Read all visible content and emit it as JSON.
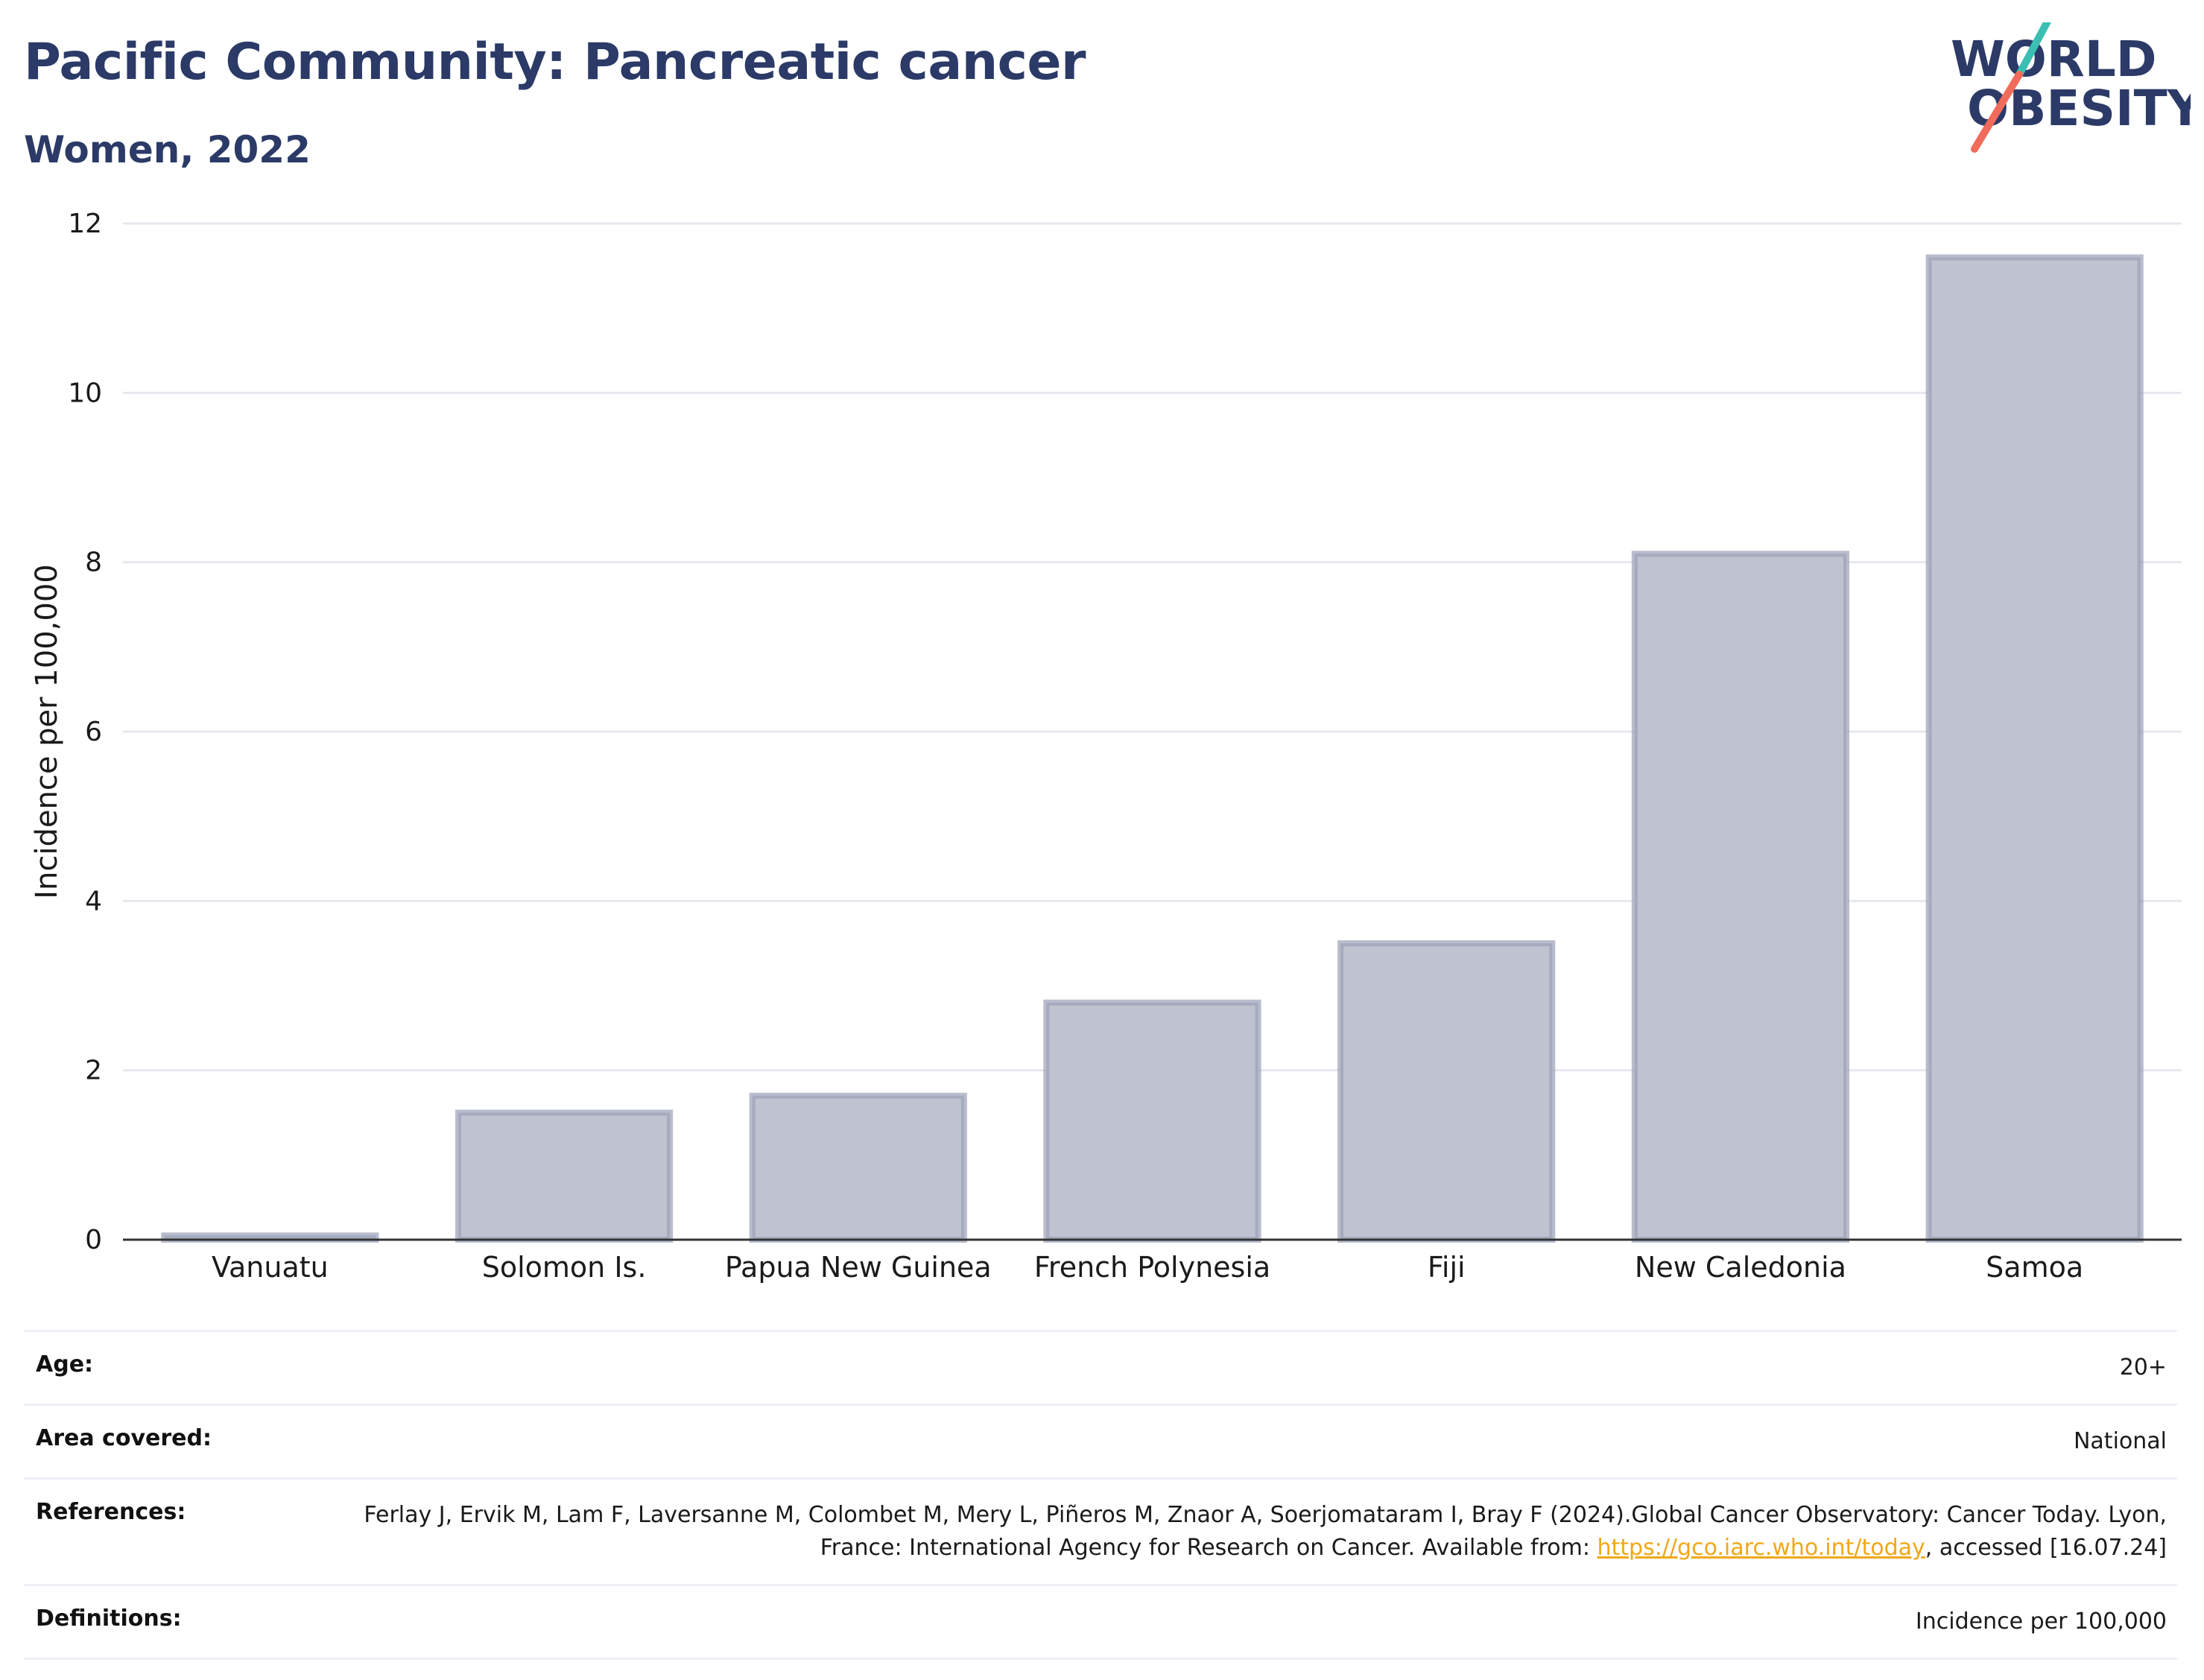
{
  "header": {
    "title": "Pacific Community: Pancreatic cancer",
    "subtitle": "Women, 2022"
  },
  "logo": {
    "line1": "WORLD",
    "line2": "OBESITY",
    "colors": {
      "text": "#2b3a67",
      "slash_top": "#3bbfb2",
      "slash_bottom": "#f06b5b"
    }
  },
  "chart_data": {
    "type": "bar",
    "categories": [
      "Vanuatu",
      "Solomon Is.",
      "Papua New Guinea",
      "French Polynesia",
      "Fiji",
      "New Caledonia",
      "Samoa"
    ],
    "values": [
      0.05,
      1.5,
      1.7,
      2.8,
      3.5,
      8.1,
      11.6
    ],
    "ylabel": "Incidence per 100,000",
    "xlabel": "",
    "ylim": [
      0,
      12
    ],
    "yticks": [
      0,
      2,
      4,
      6,
      8,
      10,
      12
    ],
    "grid": true,
    "colors": {
      "bar_fill": "#bfc3cf",
      "bar_stroke": "#9aa0b8",
      "grid": "#e6e8ee",
      "axis": "#333333"
    }
  },
  "meta": {
    "age": {
      "label": "Age:",
      "value": "20+"
    },
    "area": {
      "label": "Area covered:",
      "value": "National"
    },
    "references": {
      "label": "References:",
      "text_before": "Ferlay J, Ervik M, Lam F, Laversanne M, Colombet M, Mery L, Piñeros M, Znaor A, Soerjomataram I, Bray F (2024).Global Cancer Observatory: Cancer Today. Lyon, France: International Agency for Research on Cancer. Available from: ",
      "link": "https://gco.iarc.who.int/today",
      "text_after": ", accessed [16.07.24]"
    },
    "definitions": {
      "label": "Definitions:",
      "value": "Incidence per 100,000"
    }
  }
}
